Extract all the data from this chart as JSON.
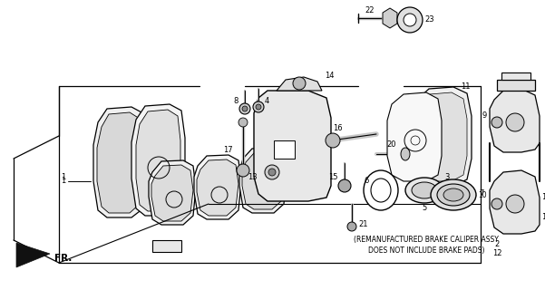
{
  "bg_color": "#ffffff",
  "line_color": "#000000",
  "figsize": [
    6.01,
    3.2
  ],
  "dpi": 100,
  "note_line1": "(REMANUFACTURED BRAKE CALIPER ASSY",
  "note_line2": "DOES NOT INCLUDE BRAKE PADS)",
  "fr_label": "FR."
}
